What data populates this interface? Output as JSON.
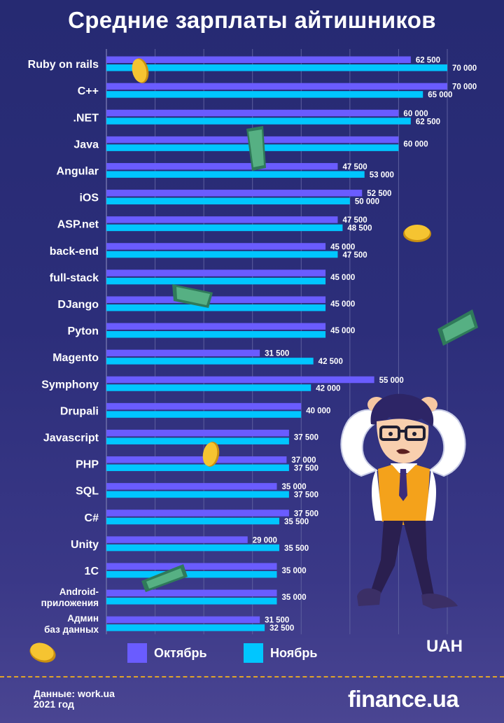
{
  "title": "Средние зарплаты айтишников",
  "colors": {
    "october": "#6a5cff",
    "november": "#00c6ff",
    "grid": "#5d5f9e"
  },
  "legend": {
    "october": "Октябрь",
    "november": "Ноябрь"
  },
  "unit": "UAH",
  "source": {
    "line1": "Данные: work.ua",
    "line2": "2021 год"
  },
  "brand": {
    "name": "finance",
    "suffix": ".ua"
  },
  "chart_data": {
    "type": "bar",
    "orientation": "horizontal",
    "title": "Средние зарплаты айтишников",
    "unit": "UAH",
    "xlim": [
      0,
      70000
    ],
    "grid": true,
    "legend_position": "bottom",
    "categories": [
      "Ruby on rails",
      "C++",
      ".NET",
      "Java",
      "Angular",
      "iOS",
      "ASP.net",
      "back-end",
      "full-stack",
      "DJango",
      "Pyton",
      "Magento",
      "Symphony",
      "Drupali",
      "Javascript",
      "PHP",
      "SQL",
      "C#",
      "Unity",
      "1C",
      "Android-\nприложения",
      "Админ\nбаз данных"
    ],
    "series": [
      {
        "name": "Октябрь",
        "values": [
          62500,
          70000,
          60000,
          60000,
          47500,
          52500,
          47500,
          45000,
          45000,
          45000,
          45000,
          31500,
          55000,
          40000,
          37500,
          37000,
          35000,
          37500,
          29000,
          35000,
          35000,
          31500
        ],
        "labels": [
          "62 500",
          "70 000",
          "60 000",
          null,
          "47 500",
          "52 500",
          "47 500",
          "45 000",
          null,
          null,
          null,
          "31 500",
          "55 000",
          null,
          null,
          "37 000",
          "35 000",
          "37 500",
          "29 000",
          null,
          null,
          "31 500"
        ]
      },
      {
        "name": "Ноябрь",
        "values": [
          70000,
          65000,
          62500,
          60000,
          53000,
          50000,
          48500,
          47500,
          45000,
          45000,
          45000,
          42500,
          42000,
          40000,
          37500,
          37500,
          37500,
          35500,
          35500,
          35000,
          35000,
          32500
        ],
        "labels": [
          "70 000",
          "65 000",
          "62 500",
          null,
          "53 000",
          "50 000",
          "48 500",
          "47 500",
          null,
          null,
          null,
          "42 500",
          "42 000",
          null,
          null,
          "37 500",
          "37 500",
          "35 500",
          "35 500",
          null,
          null,
          "32 500"
        ]
      }
    ],
    "shared_labels": [
      null,
      null,
      null,
      "60 000",
      null,
      null,
      null,
      null,
      "45 000",
      "45 000",
      "45 000",
      null,
      null,
      "40 000",
      "37 500",
      null,
      null,
      null,
      null,
      "35 000",
      "35 000",
      null
    ]
  }
}
